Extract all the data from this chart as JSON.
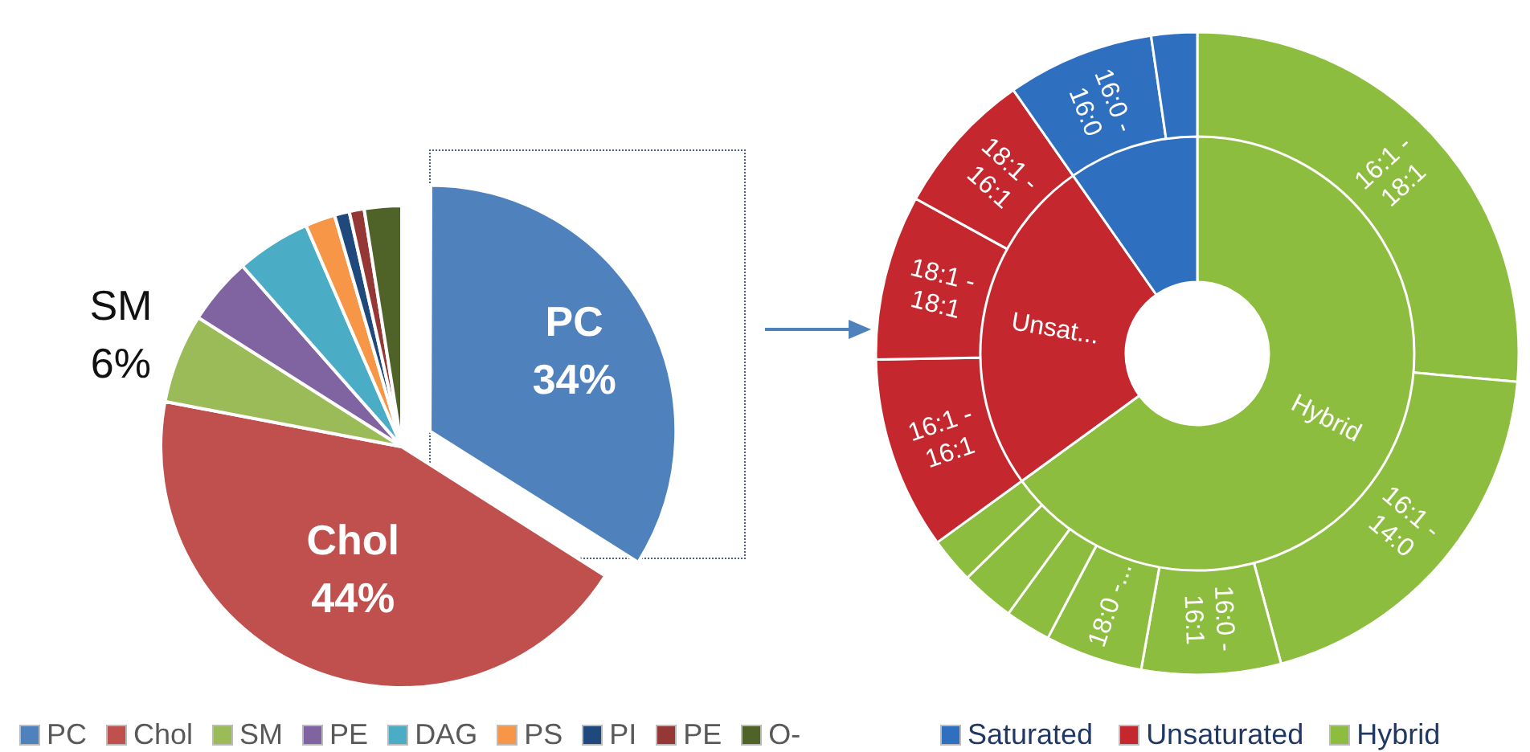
{
  "chart_data": [
    {
      "type": "pie",
      "categories": [
        "PC",
        "Chol",
        "SM",
        "PE",
        "DAG",
        "PS",
        "PI",
        "PE",
        "O-"
      ],
      "values": [
        34,
        44,
        6,
        4.5,
        5,
        2,
        1,
        1,
        2.5
      ],
      "colors": [
        "#4f81bd",
        "#c0504d",
        "#9bbb59",
        "#8064a2",
        "#4bacc6",
        "#f79646",
        "#1f497d",
        "#953735",
        "#4f6228"
      ],
      "value_labels": [
        "34%",
        "44%",
        "6%",
        null,
        null,
        null,
        null,
        null,
        null
      ],
      "legend": "bottom"
    },
    {
      "type": "donut",
      "categories": [
        "Saturated",
        "Unsaturated",
        "Hybrid"
      ],
      "values": [
        9.7,
        25.3,
        65
      ],
      "colors": [
        "#2e6fc0",
        "#c4282e",
        "#8cbd3e"
      ],
      "value_labels": [
        null,
        "Unsat...",
        "Hybrid"
      ],
      "legend": "bottom"
    },
    {
      "type": "donut",
      "categories": [
        null,
        "16:0 - 16:0",
        "18:1 - 16:1",
        "18:1 - 18:1",
        "16:1 - 16:1",
        null,
        null,
        null,
        "18:0 -...",
        "16:0 - 16:1",
        "16:1 - 14:0",
        "16:1 - 18:1"
      ],
      "values": [
        2.3,
        7.4,
        7.3,
        8.3,
        9.7,
        2.3,
        2.7,
        2.3,
        4.9,
        7.0,
        19.4,
        26.4
      ],
      "colors": [
        "#2e6fc0",
        "#2e6fc0",
        "#c4282e",
        "#c4282e",
        "#c4282e",
        "#8cbd3e",
        "#8cbd3e",
        "#8cbd3e",
        "#8cbd3e",
        "#8cbd3e",
        "#8cbd3e",
        "#8cbd3e"
      ],
      "data_labels": false
    }
  ]
}
